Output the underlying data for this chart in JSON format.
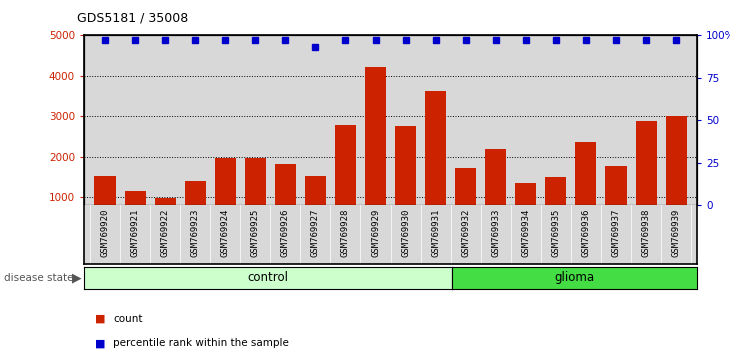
{
  "title": "GDS5181 / 35008",
  "samples": [
    "GSM769920",
    "GSM769921",
    "GSM769922",
    "GSM769923",
    "GSM769924",
    "GSM769925",
    "GSM769926",
    "GSM769927",
    "GSM769928",
    "GSM769929",
    "GSM769930",
    "GSM769931",
    "GSM769932",
    "GSM769933",
    "GSM769934",
    "GSM769935",
    "GSM769936",
    "GSM769937",
    "GSM769938",
    "GSM769939"
  ],
  "counts": [
    1530,
    1150,
    980,
    1390,
    1980,
    1960,
    1820,
    1530,
    2780,
    4220,
    2760,
    3620,
    1720,
    2190,
    1340,
    1490,
    2360,
    1760,
    2880,
    3000
  ],
  "percentile_ranks": [
    97,
    97,
    97,
    97,
    97,
    97,
    97,
    93,
    97,
    97,
    97,
    97,
    97,
    97,
    97,
    97,
    97,
    97,
    97,
    97
  ],
  "control_count": 12,
  "glioma_count": 8,
  "ylim_left": [
    800,
    5000
  ],
  "ylim_right": [
    0,
    100
  ],
  "yticks_left": [
    1000,
    2000,
    3000,
    4000,
    5000
  ],
  "yticks_right": [
    0,
    25,
    50,
    75,
    100
  ],
  "bar_color": "#cc2200",
  "dot_color": "#0000cc",
  "control_fill": "#ccffcc",
  "glioma_fill": "#44dd44",
  "axis_bg": "#d8d8d8",
  "white_bg": "#ffffff",
  "legend_count_color": "#cc2200",
  "legend_pct_color": "#0000cc"
}
